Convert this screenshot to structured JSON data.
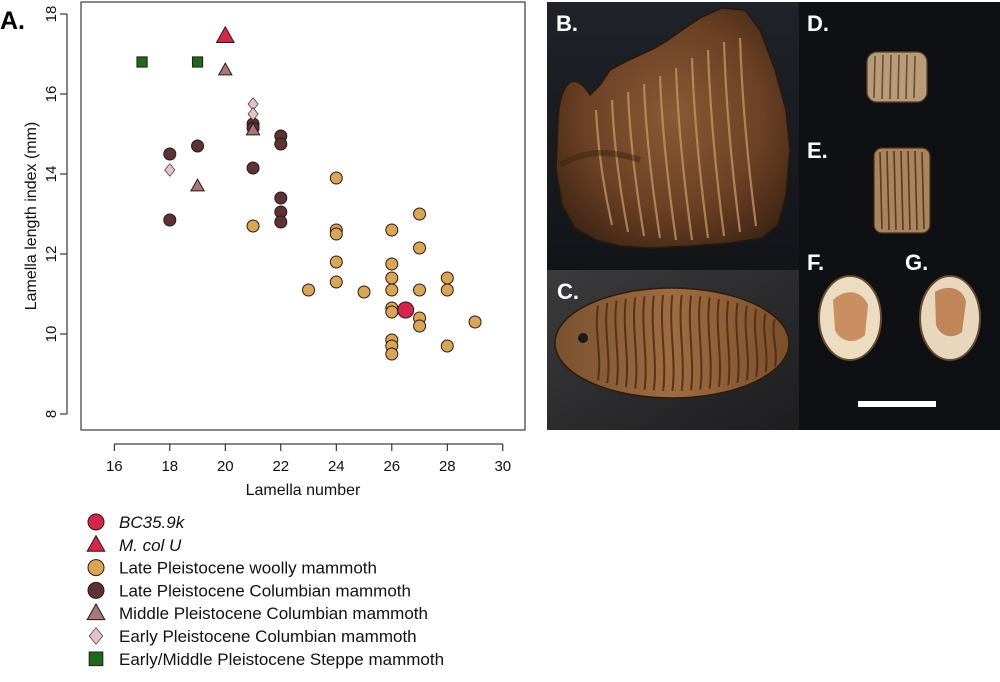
{
  "chart_data": {
    "type": "scatter",
    "panel_label": "A.",
    "xlabel": "Lamella number",
    "ylabel": "Lamella length index (mm)",
    "xlim": [
      14.8,
      30.8
    ],
    "ylim": [
      7.6,
      18.3
    ],
    "xticks": [
      16,
      18,
      20,
      22,
      24,
      26,
      28,
      30
    ],
    "yticks": [
      8,
      10,
      12,
      14,
      16,
      18
    ],
    "grid": false,
    "legend_position": "below",
    "series": [
      {
        "name": "Late Pleistocene woolly mammoth",
        "marker": "circle",
        "color": "#d9a556",
        "points": [
          [
            21,
            12.7
          ],
          [
            23,
            11.1
          ],
          [
            24,
            13.9
          ],
          [
            24,
            12.6
          ],
          [
            24,
            12.5
          ],
          [
            24,
            11.8
          ],
          [
            24,
            11.3
          ],
          [
            25,
            11.05
          ],
          [
            26,
            12.6
          ],
          [
            26,
            11.75
          ],
          [
            26,
            11.4
          ],
          [
            26,
            11.1
          ],
          [
            26,
            10.65
          ],
          [
            26,
            10.55
          ],
          [
            26,
            9.85
          ],
          [
            26,
            9.7
          ],
          [
            26,
            9.5
          ],
          [
            27,
            13.0
          ],
          [
            27,
            12.15
          ],
          [
            27,
            11.1
          ],
          [
            27,
            10.4
          ],
          [
            27,
            10.2
          ],
          [
            28,
            11.4
          ],
          [
            28,
            11.1
          ],
          [
            28,
            9.7
          ],
          [
            29,
            10.3
          ]
        ]
      },
      {
        "name": "Late Pleistocene Columbian mammoth",
        "marker": "circle",
        "color": "#5c3235",
        "points": [
          [
            18,
            14.5
          ],
          [
            18,
            12.85
          ],
          [
            19,
            14.7
          ],
          [
            21,
            15.25
          ],
          [
            21,
            15.15
          ],
          [
            21,
            14.15
          ],
          [
            22,
            14.95
          ],
          [
            22,
            14.75
          ],
          [
            22,
            13.4
          ],
          [
            22,
            13.05
          ],
          [
            22,
            12.8
          ]
        ]
      },
      {
        "name": "Middle Pleistocene Columbian mammoth",
        "marker": "triangle",
        "color": "#a8777b",
        "points": [
          [
            19,
            13.7
          ],
          [
            20,
            16.6
          ],
          [
            21,
            15.1
          ]
        ]
      },
      {
        "name": "Early Pleistocene Columbian mammoth",
        "marker": "diamond",
        "color": "#e4c3c8",
        "points": [
          [
            18,
            14.1
          ],
          [
            21,
            15.75
          ],
          [
            21,
            15.5
          ]
        ]
      },
      {
        "name": "Early/Middle Pleistocene Steppe mammoth",
        "marker": "square",
        "color": "#1e6a1c",
        "points": [
          [
            17,
            16.8
          ],
          [
            19,
            16.8
          ]
        ]
      },
      {
        "name": "M. col U",
        "marker": "triangle",
        "color": "#d6254a",
        "size": "large",
        "points": [
          [
            20,
            17.45
          ]
        ]
      },
      {
        "name": "BC35.9k",
        "marker": "circle",
        "color": "#d6254a",
        "size": "large",
        "points": [
          [
            26.5,
            10.6
          ]
        ]
      }
    ]
  },
  "legend": {
    "items": [
      {
        "label": "BC35.9k",
        "italic": true,
        "marker": "circle",
        "color": "#d6254a"
      },
      {
        "label": "M. col U",
        "italic": true,
        "marker": "triangle",
        "color": "#d6254a"
      },
      {
        "label": "Late Pleistocene woolly mammoth",
        "italic": false,
        "marker": "circle",
        "color": "#d9a556"
      },
      {
        "label": "Late Pleistocene Columbian mammoth",
        "italic": false,
        "marker": "circle",
        "color": "#5c3235"
      },
      {
        "label": "Middle Pleistocene Columbian mammoth",
        "italic": false,
        "marker": "triangle",
        "color": "#a8777b"
      },
      {
        "label": "Early Pleistocene Columbian mammoth",
        "italic": false,
        "marker": "diamond",
        "color": "#e4c3c8"
      },
      {
        "label": "Early/Middle Pleistocene Steppe mammoth",
        "italic": false,
        "marker": "square",
        "color": "#1e6a1c"
      }
    ]
  },
  "photos": {
    "panels": [
      {
        "label": "B.",
        "subject": "mandible-with-molar"
      },
      {
        "label": "C.",
        "subject": "molar-occlusal-surface"
      },
      {
        "label": "D.",
        "subject": "molar-fragment"
      },
      {
        "label": "E.",
        "subject": "molar-fragment"
      },
      {
        "label": "F.",
        "subject": "tooth-cross-section"
      },
      {
        "label": "G.",
        "subject": "tooth-cross-section"
      }
    ],
    "has_scale_bar": true
  }
}
